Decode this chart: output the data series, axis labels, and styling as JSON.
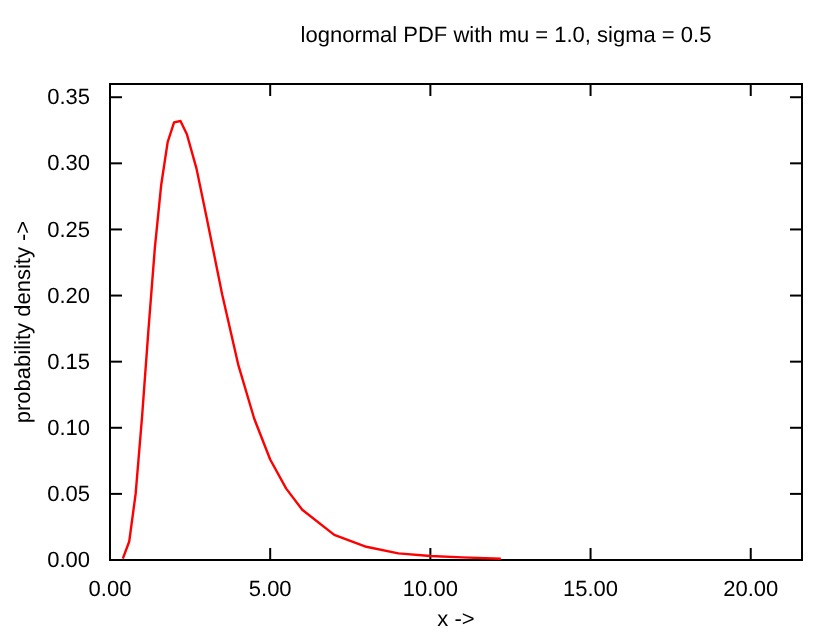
{
  "chart_data": {
    "type": "line",
    "title": "lognormal PDF with mu = 1.0, sigma = 0.5",
    "xlabel": "x ->",
    "ylabel": "probability density ->",
    "x": [
      0.4,
      0.6,
      0.8,
      1.0,
      1.2,
      1.4,
      1.6,
      1.8,
      2.0,
      2.2,
      2.4,
      2.7,
      3.0,
      3.5,
      4.0,
      4.5,
      5.0,
      5.5,
      6.0,
      7.0,
      8.0,
      9.0,
      10.0,
      11.0,
      12.2
    ],
    "series": [
      {
        "color": "#ff0000",
        "values": [
          0.001,
          0.014,
          0.05,
          0.108,
          0.174,
          0.236,
          0.284,
          0.316,
          0.331,
          0.332,
          0.322,
          0.296,
          0.261,
          0.201,
          0.148,
          0.107,
          0.076,
          0.054,
          0.038,
          0.019,
          0.01,
          0.005,
          0.003,
          0.002,
          0.001
        ]
      }
    ],
    "xlim": [
      0,
      21.6
    ],
    "ylim": [
      0,
      0.36
    ],
    "xticks": [
      {
        "value": 0,
        "label": "0.00"
      },
      {
        "value": 5,
        "label": "5.00"
      },
      {
        "value": 10,
        "label": "10.00"
      },
      {
        "value": 15,
        "label": "15.00"
      },
      {
        "value": 20,
        "label": "20.00"
      }
    ],
    "yticks": [
      {
        "value": 0,
        "label": "0.00"
      },
      {
        "value": 0.05,
        "label": "0.05"
      },
      {
        "value": 0.1,
        "label": "0.10"
      },
      {
        "value": 0.15,
        "label": "0.15"
      },
      {
        "value": 0.2,
        "label": "0.20"
      },
      {
        "value": 0.25,
        "label": "0.25"
      },
      {
        "value": 0.3,
        "label": "0.30"
      },
      {
        "value": 0.35,
        "label": "0.35"
      }
    ],
    "grid": false,
    "marker": "none",
    "line_style": "solid"
  }
}
